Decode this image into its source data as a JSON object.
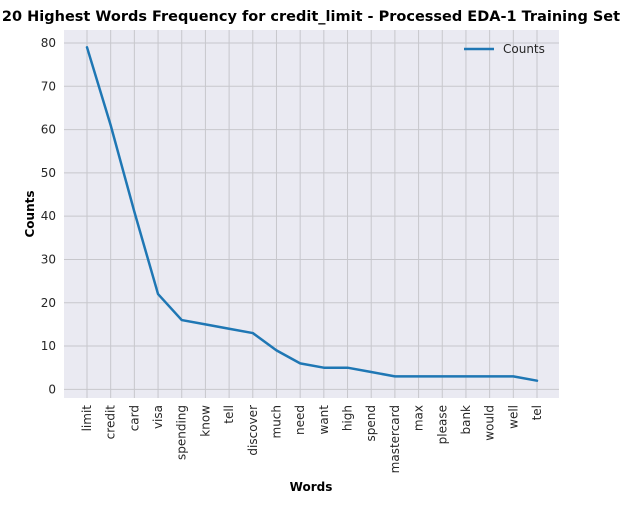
{
  "chart_data": {
    "type": "line",
    "title": "20 Highest Words Frequency for credit_limit - Processed EDA-1 Training Set",
    "xlabel": "Words",
    "ylabel": "Counts",
    "categories": [
      "limit",
      "credit",
      "card",
      "visa",
      "spending",
      "know",
      "tell",
      "discover",
      "much",
      "need",
      "want",
      "high",
      "spend",
      "mastercard",
      "max",
      "please",
      "bank",
      "would",
      "well",
      "tel"
    ],
    "series": [
      {
        "name": "Counts",
        "values": [
          79,
          61,
          41,
          22,
          16,
          15,
          14,
          13,
          9,
          6,
          5,
          5,
          4,
          3,
          3,
          3,
          3,
          3,
          3,
          2
        ],
        "color": "#1f77b4"
      }
    ],
    "ylim": [
      -2,
      83
    ],
    "yticks": [
      0,
      10,
      20,
      30,
      40,
      50,
      60,
      70,
      80
    ],
    "grid": true,
    "legend_position": "top-right",
    "background_color": "#eaeaf2",
    "grid_color": "#c7c7cc"
  }
}
